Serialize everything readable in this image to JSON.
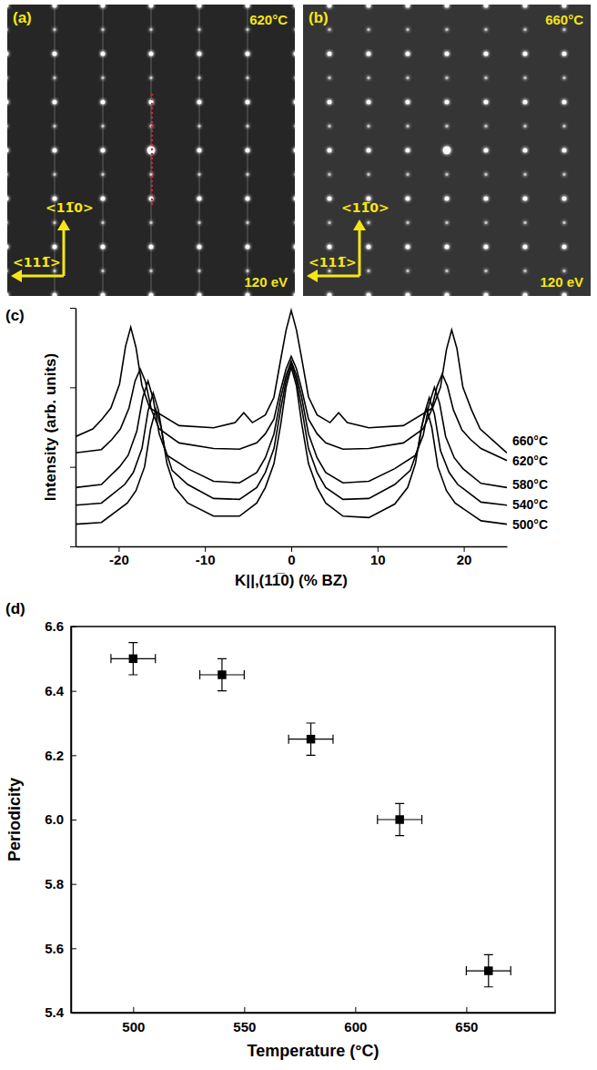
{
  "chart_data": [
    {
      "type": "image",
      "panel_label": "(a)",
      "annotations": [
        "620°C",
        "120 eV"
      ],
      "directions": [
        "<11̅0>",
        "<111̅>"
      ]
    },
    {
      "type": "image",
      "panel_label": "(b)",
      "annotations": [
        "660°C",
        "120 eV"
      ],
      "directions": [
        "<11̅0>",
        "<111̅>"
      ]
    },
    {
      "type": "line",
      "panel_label": "(c)",
      "xlabel": "K||,(11̅0) (% BZ)",
      "ylabel": "Intensity (arb. units)",
      "log": "y",
      "tick_labels": "x",
      "color": "#000000",
      "xlim": [
        -25,
        25
      ],
      "xticks": [
        -20,
        -10,
        0,
        10,
        20
      ],
      "ylim": [
        1,
        1000
      ],
      "yticks": [
        1,
        10,
        100,
        1000
      ],
      "series": [
        {
          "name": "660°C",
          "x": [
            -25,
            -23,
            -21.9,
            -20.9,
            -19.9,
            -19.2,
            -18.6,
            -18,
            -17.3,
            -16.4,
            -13,
            -9,
            -6.5,
            -5.5,
            -4.5,
            -3,
            -2,
            -1.2,
            -0.6,
            0,
            0.6,
            1.2,
            2,
            3,
            4.5,
            5.5,
            6.5,
            9,
            13,
            16.4,
            17.3,
            18,
            18.6,
            19.2,
            19.9,
            20.9,
            21.9,
            25
          ],
          "values": [
            24,
            30,
            40,
            55,
            110,
            330,
            570,
            320,
            105,
            55,
            33,
            31,
            36,
            48,
            36,
            45,
            75,
            230,
            520,
            927,
            530,
            235,
            76,
            45,
            36,
            48,
            36,
            31,
            33,
            55,
            100,
            300,
            527,
            310,
            100,
            52,
            30,
            15
          ]
        },
        {
          "name": "620°C",
          "x": [
            -25,
            -22,
            -20.8,
            -19.8,
            -18.8,
            -18.1,
            -17.5,
            -16.9,
            -16.2,
            -15.3,
            -13,
            -9,
            -6,
            -4,
            -3,
            -2,
            -1.2,
            -0.6,
            0,
            0.6,
            1.2,
            2,
            3,
            4,
            6,
            9,
            13,
            15.3,
            16.2,
            16.9,
            17.5,
            18.1,
            18.8,
            19.8,
            20.8,
            22,
            25
          ],
          "values": [
            15,
            16.5,
            22,
            30,
            55,
            120,
            170,
            118,
            52,
            30,
            20,
            17,
            16.7,
            20,
            26,
            40,
            95,
            170,
            245,
            172,
            96,
            40,
            26,
            20,
            16.7,
            17,
            20,
            30,
            50,
            102,
            147,
            104,
            52,
            29,
            22,
            17,
            12
          ]
        },
        {
          "name": "580°C",
          "x": [
            -25,
            -22,
            -19.9,
            -18.9,
            -17.9,
            -17.2,
            -16.6,
            -16,
            -15.3,
            -14.4,
            -12,
            -9,
            -6,
            -4,
            -3,
            -2,
            -1.2,
            -0.6,
            0,
            0.6,
            1.2,
            2,
            3,
            4,
            6,
            9,
            12,
            14.4,
            15.3,
            16,
            16.6,
            17.2,
            17.9,
            18.9,
            19.9,
            22,
            25
          ],
          "values": [
            5.5,
            6,
            10,
            14,
            28,
            75,
            120,
            72,
            26,
            14,
            9.5,
            6.6,
            6.3,
            8.5,
            13,
            26,
            75,
            140,
            215,
            142,
            76,
            26,
            13,
            8.5,
            6.3,
            6.6,
            9.5,
            14,
            25,
            62,
            100,
            63,
            24,
            13,
            9.5,
            6.2,
            5.5
          ]
        },
        {
          "name": "540°C",
          "x": [
            -25,
            -22,
            -19.3,
            -18.3,
            -17.3,
            -16.6,
            -16,
            -15.4,
            -14.7,
            -13.8,
            -12,
            -9,
            -6,
            -4,
            -3,
            -2,
            -1.2,
            -0.6,
            0,
            0.6,
            1.2,
            2,
            3,
            4,
            6,
            9,
            12,
            13.8,
            14.7,
            15.4,
            16,
            16.6,
            17.3,
            18.3,
            19.3,
            22,
            25
          ],
          "values": [
            3.3,
            3.5,
            6,
            8.5,
            17,
            50,
            85,
            52,
            18,
            9,
            6,
            4,
            3.9,
            5.5,
            8.5,
            17,
            55,
            120,
            200,
            122,
            56,
            17,
            8.5,
            5.5,
            3.9,
            4,
            6,
            9,
            17,
            45,
            74,
            46,
            16,
            8.5,
            6,
            3.6,
            3.3
          ]
        },
        {
          "name": "500°C",
          "x": [
            -25,
            -22,
            -19,
            -18,
            -17,
            -16.3,
            -15.7,
            -15.1,
            -14.4,
            -13.5,
            -12,
            -9,
            -6,
            -4,
            -3,
            -2,
            -1.2,
            -0.6,
            0,
            0.6,
            1.2,
            2,
            3,
            4,
            6,
            9,
            12,
            13.5,
            14.4,
            15.1,
            15.7,
            16.3,
            17,
            18,
            19,
            22,
            25
          ],
          "values": [
            1.9,
            2.0,
            3.5,
            5,
            10,
            30,
            53,
            32,
            11,
            5.5,
            3.5,
            2.4,
            2.4,
            3.5,
            5.5,
            11,
            35,
            100,
            180,
            105,
            36,
            11,
            5.5,
            3.5,
            2.4,
            2.3,
            3.4,
            5.5,
            11,
            32,
            55,
            31,
            10,
            5,
            3.5,
            2.1,
            1.9
          ]
        }
      ]
    },
    {
      "type": "scatter",
      "panel_label": "(d)",
      "xlabel": "Temperature (°C)",
      "ylabel": "Periodicity",
      "marker": "square",
      "color": "#000000",
      "x": [
        500,
        540,
        580,
        620,
        660
      ],
      "x_error": [
        10,
        10,
        10,
        10,
        10
      ],
      "values": [
        6.5,
        6.45,
        6.25,
        6.0,
        5.53
      ],
      "y_error": [
        0.05,
        0.05,
        0.05,
        0.05,
        0.05
      ],
      "xlim": [
        472,
        690
      ],
      "xticks": [
        500,
        550,
        600,
        650
      ],
      "ylim": [
        5.4,
        6.6
      ],
      "yticks": [
        5.4,
        5.6,
        5.8,
        {
          "value": 6,
          "label": "6.0"
        },
        6.2,
        6.4,
        6.6
      ]
    }
  ]
}
